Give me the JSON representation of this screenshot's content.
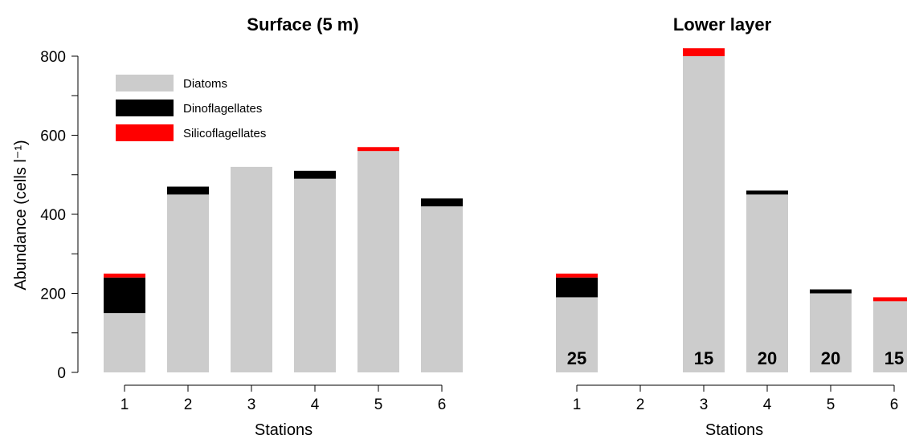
{
  "ylabel": "Abundance (cells l⁻¹)",
  "legend": {
    "placement": "top-left",
    "entries": [
      {
        "name": "Diatoms",
        "color": "#cccccc"
      },
      {
        "name": "Dinoflagellates",
        "color": "#000000"
      },
      {
        "name": "Silicoflagellates",
        "color": "#ff0000"
      }
    ]
  },
  "chart_data": [
    {
      "type": "bar",
      "stacked": true,
      "title": "Surface (5 m)",
      "xlabel": "Stations",
      "ylabel": "Abundance (cells l⁻¹)",
      "ylim": [
        0,
        800
      ],
      "yticks": [
        0,
        200,
        400,
        600,
        800
      ],
      "categories": [
        "1",
        "2",
        "3",
        "4",
        "5",
        "6"
      ],
      "series": [
        {
          "name": "Diatoms",
          "color": "#cccccc",
          "values": [
            150,
            450,
            520,
            490,
            560,
            420
          ]
        },
        {
          "name": "Dinoflagellates",
          "color": "#000000",
          "values": [
            90,
            20,
            0,
            20,
            0,
            20
          ]
        },
        {
          "name": "Silicoflagellates",
          "color": "#ff0000",
          "values": [
            10,
            0,
            0,
            0,
            10,
            0
          ]
        }
      ],
      "data_labels": [
        "",
        "",
        "",
        "",
        "",
        ""
      ]
    },
    {
      "type": "bar",
      "stacked": true,
      "title": "Lower layer",
      "xlabel": "Stations",
      "categories": [
        "1",
        "2",
        "3",
        "4",
        "5",
        "6"
      ],
      "series": [
        {
          "name": "Diatoms",
          "color": "#cccccc",
          "values": [
            190,
            0,
            800,
            450,
            200,
            180
          ]
        },
        {
          "name": "Dinoflagellates",
          "color": "#000000",
          "values": [
            50,
            0,
            0,
            10,
            10,
            0
          ]
        },
        {
          "name": "Silicoflagellates",
          "color": "#ff0000",
          "values": [
            10,
            0,
            20,
            0,
            0,
            10
          ]
        }
      ],
      "data_labels": [
        "25",
        "",
        "15",
        "20",
        "20",
        "15"
      ]
    }
  ]
}
